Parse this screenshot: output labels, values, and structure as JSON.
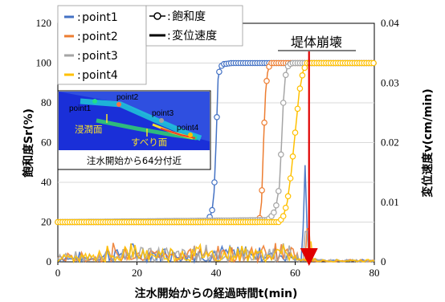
{
  "chart_data": {
    "type": "line",
    "xlabel": "注水開始からの経過時間t(min)",
    "ylabel_left": "飽和度Sr(%)",
    "ylabel_right": "変位速度v(cm/min)",
    "xlim": [
      0,
      80
    ],
    "ylim_left": [
      0,
      120
    ],
    "ylim_right": [
      0,
      0.04
    ],
    "x_ticks": [
      "0",
      "20",
      "40",
      "60",
      "80"
    ],
    "y_ticks_left": [
      "0",
      "20",
      "40",
      "60",
      "80",
      "100",
      "120"
    ],
    "y_ticks_right": [
      "0",
      "0.01",
      "0.02",
      "0.03",
      "0.04"
    ],
    "grid": "horizontal",
    "legend_placement": "top-left",
    "legend": {
      "points": [
        "point1",
        "point2",
        "point3",
        "point4"
      ],
      "saturation_marker": "飽和度",
      "velocity_line": "変位速度"
    },
    "annotation": "堤体崩壊",
    "collapse_time": 63.5,
    "inset": {
      "caption": "注水開始から64分付近",
      "labels": [
        "point1",
        "point2",
        "point3",
        "point4",
        "浸潤面",
        "すべり面"
      ]
    },
    "series": [
      {
        "name": "point1",
        "color": "#4472C4",
        "saturation": {
          "t": [
            0,
            37,
            38,
            38.5,
            39,
            39.5,
            40,
            40.5,
            41,
            42,
            44,
            80
          ],
          "s": [
            20,
            20,
            21,
            23,
            26,
            35,
            60,
            92,
            98,
            99.5,
            100,
            100
          ]
        },
        "velocity_peaks": [
          {
            "t": 62.5,
            "v": 0.0162
          }
        ]
      },
      {
        "name": "point2",
        "color": "#ED7D31",
        "saturation": {
          "t": [
            0,
            50.5,
            51,
            51.5,
            52,
            52.5,
            53,
            53.5,
            54,
            55,
            80
          ],
          "s": [
            20,
            20,
            22,
            30,
            60,
            85,
            95,
            99,
            100,
            100,
            100
          ]
        },
        "velocity_peaks": [
          {
            "t": 63.2,
            "v": 0.0158
          }
        ]
      },
      {
        "name": "point3",
        "color": "#A5A5A5",
        "saturation": {
          "t": [
            0,
            53,
            54,
            55,
            56,
            56.5,
            57,
            57.5,
            58,
            59,
            80
          ],
          "s": [
            20,
            21,
            23,
            26,
            38,
            58,
            80,
            93,
            98,
            100,
            100
          ]
        },
        "velocity_peaks": [
          {
            "t": 62.8,
            "v": 0.0145
          }
        ]
      },
      {
        "name": "point4",
        "color": "#FFC000",
        "saturation": {
          "t": [
            0,
            56,
            57,
            58,
            59,
            60,
            61,
            62,
            63,
            64,
            80
          ],
          "s": [
            20,
            20,
            23,
            30,
            45,
            65,
            85,
            96,
            100,
            100,
            100
          ]
        },
        "velocity_peaks": [
          {
            "t": 63.8,
            "v": 0.0095
          }
        ]
      }
    ]
  }
}
